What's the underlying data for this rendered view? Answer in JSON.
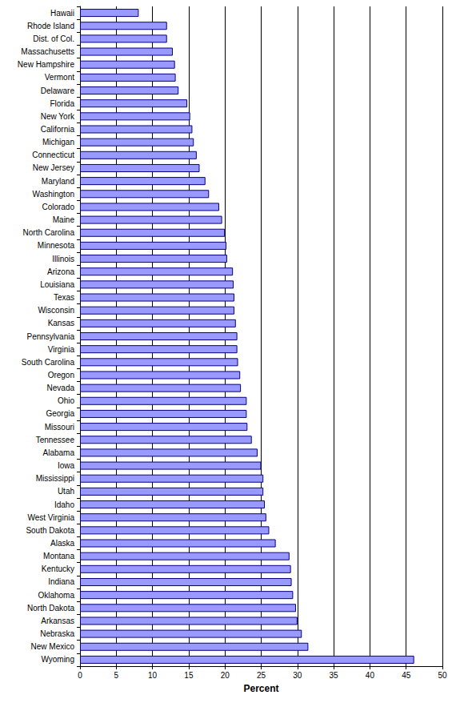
{
  "chart_data": {
    "type": "bar",
    "orientation": "horizontal",
    "xlabel": "Percent",
    "categories": [
      "Hawaii",
      "Rhode Island",
      "Dist. of Col.",
      "Massachusetts",
      "New Hampshire",
      "Vermont",
      "Delaware",
      "Florida",
      "New York",
      "California",
      "Michigan",
      "Connecticut",
      "New Jersey",
      "Maryland",
      "Washington",
      "Colorado",
      "Maine",
      "North Carolina",
      "Minnesota",
      "Illinois",
      "Arizona",
      "Louisiana",
      "Texas",
      "Wisconsin",
      "Kansas",
      "Pennsylvania",
      "Virginia",
      "South Carolina",
      "Oregon",
      "Nevada",
      "Ohio",
      "Georgia",
      "Missouri",
      "Tennessee",
      "Alabama",
      "Iowa",
      "Mississippi",
      "Utah",
      "Idaho",
      "West Virginia",
      "South Dakota",
      "Alaska",
      "Montana",
      "Kentucky",
      "Indiana",
      "Oklahoma",
      "North Dakota",
      "Arkansas",
      "Nebraska",
      "New Mexico",
      "Wyoming"
    ],
    "values": [
      8.1,
      12.0,
      12.0,
      12.8,
      13.1,
      13.2,
      13.6,
      14.8,
      15.2,
      15.5,
      15.7,
      16.1,
      16.5,
      17.3,
      17.8,
      19.2,
      19.6,
      20.0,
      20.2,
      20.3,
      21.1,
      21.2,
      21.3,
      21.3,
      21.5,
      21.7,
      21.7,
      21.8,
      22.1,
      22.2,
      23.0,
      23.0,
      23.1,
      23.7,
      24.5,
      25.0,
      25.3,
      25.3,
      25.5,
      25.7,
      26.1,
      27.0,
      28.9,
      29.1,
      29.2,
      29.4,
      29.8,
      30.0,
      30.6,
      31.5,
      46.1
    ],
    "color": "#9999ff",
    "xlim": [
      0,
      50
    ],
    "xticks": [
      0,
      5,
      10,
      15,
      20,
      25,
      30,
      35,
      40,
      45,
      50
    ],
    "grid": true
  }
}
